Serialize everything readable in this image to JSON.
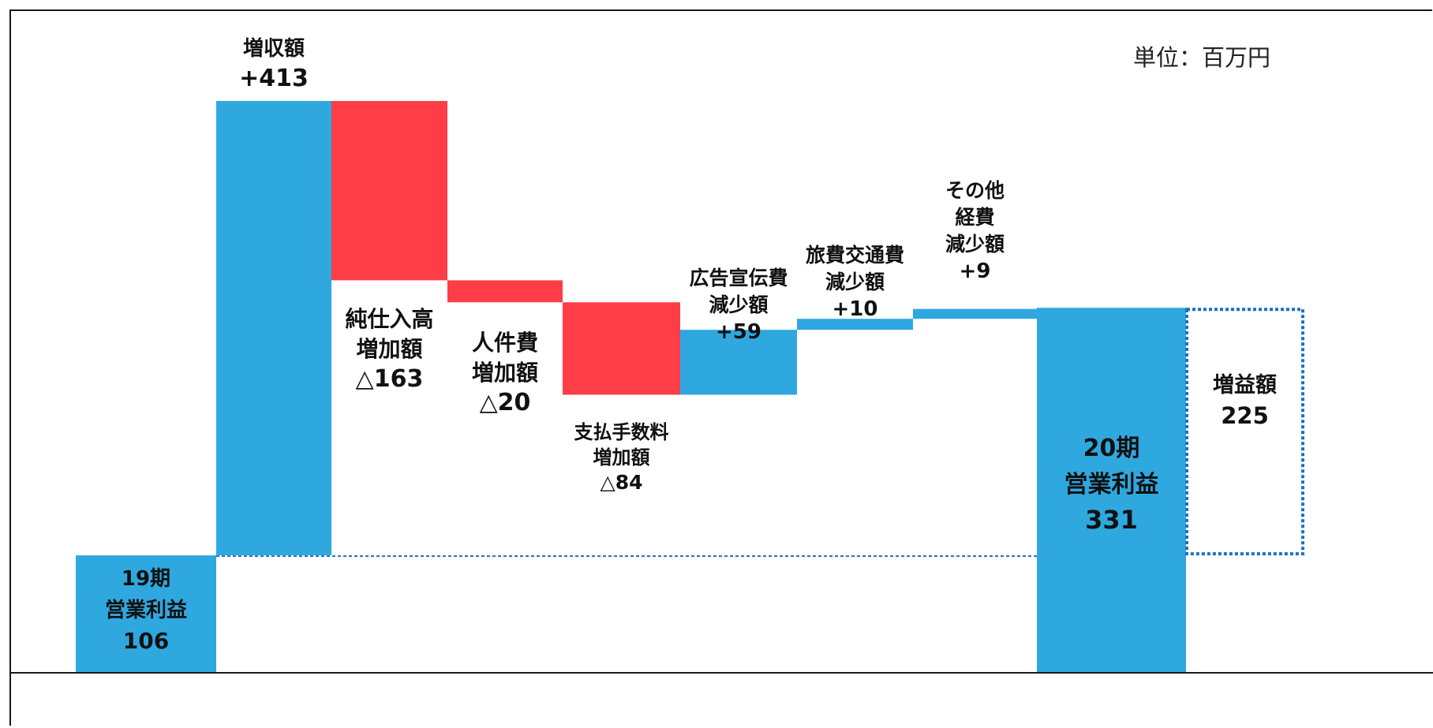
{
  "unit_label": "単位：百万円",
  "chart_data": {
    "type": "waterfall",
    "unit": "単位：百万円",
    "steps": [
      {
        "kind": "total",
        "label": [
          "19期",
          "営業利益",
          "106"
        ],
        "value": 106,
        "color": "#2fa8e0",
        "text_color": "#1f3a5a"
      },
      {
        "kind": "delta",
        "label": [
          "増収額",
          "+413"
        ],
        "value": 413,
        "color": "#2fa8e0",
        "text_color": "#1f3a5a"
      },
      {
        "kind": "delta",
        "label": [
          "純仕入高",
          "増加額",
          "△163"
        ],
        "value": -163,
        "color": "#ff3d47",
        "text_color": "#111111"
      },
      {
        "kind": "delta",
        "label": [
          "人件費",
          "増加額",
          "△20"
        ],
        "value": -20,
        "color": "#ff3d47",
        "text_color": "#111111"
      },
      {
        "kind": "delta",
        "label": [
          "支払手数料",
          "増加額",
          "△84"
        ],
        "value": -84,
        "color": "#ff3d47",
        "text_color": "#111111"
      },
      {
        "kind": "delta",
        "label": [
          "広告宣伝費",
          "減少額",
          "+59"
        ],
        "value": 59,
        "color": "#2fa8e0",
        "text_color": "#111111"
      },
      {
        "kind": "delta",
        "label": [
          "旅費交通費",
          "減少額",
          "+10"
        ],
        "value": 10,
        "color": "#2fa8e0",
        "text_color": "#111111"
      },
      {
        "kind": "delta",
        "label": [
          "その他",
          "経費",
          "減少額",
          "+9"
        ],
        "value": 9,
        "color": "#2fa8e0",
        "text_color": "#111111"
      },
      {
        "kind": "total",
        "label": [
          "20期",
          "営業利益",
          "331"
        ],
        "value": 331,
        "color": "#2fa8e0",
        "text_color": "#1f3a5a"
      }
    ],
    "bracket": {
      "label": [
        "増益額",
        "225"
      ],
      "value": 225,
      "from": 106,
      "to": 331,
      "color": "#1f6fbf"
    },
    "ylim": [
      0,
      519
    ],
    "grid": false
  }
}
